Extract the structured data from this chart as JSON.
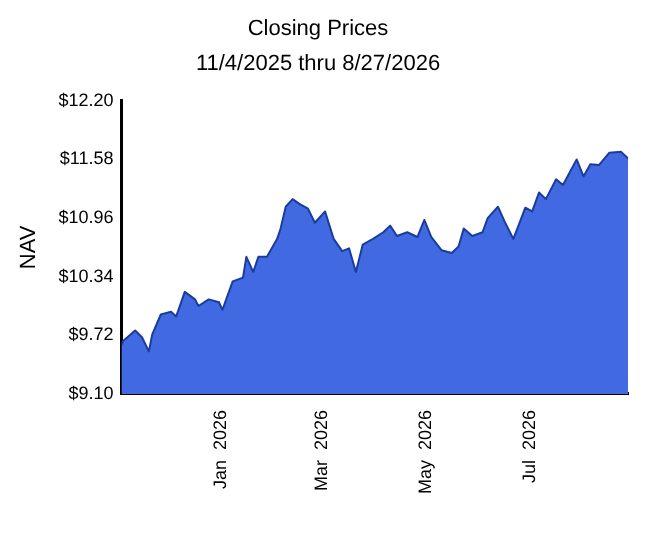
{
  "chart_data": {
    "type": "area",
    "title": "Closing Prices",
    "subtitle": "11/4/2025 thru 8/27/2026",
    "ylabel": "NAV",
    "x": [
      "2025-11-04",
      "2025-11-05",
      "2025-11-12",
      "2025-11-16",
      "2025-11-20",
      "2025-11-22",
      "2025-11-27",
      "2025-12-03",
      "2025-12-06",
      "2025-12-11",
      "2025-12-17",
      "2025-12-19",
      "2025-12-25",
      "2025-12-31",
      "2026-01-02",
      "2026-01-08",
      "2026-01-14",
      "2026-01-16",
      "2026-01-20",
      "2026-01-23",
      "2026-01-28",
      "2026-02-03",
      "2026-02-05",
      "2026-02-08",
      "2026-02-12",
      "2026-02-16",
      "2026-02-21",
      "2026-02-25",
      "2026-03-03",
      "2026-03-08",
      "2026-03-13",
      "2026-03-17",
      "2026-03-21",
      "2026-03-25",
      "2026-03-31",
      "2026-04-06",
      "2026-04-10",
      "2026-04-14",
      "2026-04-20",
      "2026-04-26",
      "2026-04-30",
      "2026-05-04",
      "2026-05-10",
      "2026-05-16",
      "2026-05-20",
      "2026-05-23",
      "2026-05-28",
      "2026-06-03",
      "2026-06-06",
      "2026-06-12",
      "2026-06-16",
      "2026-06-21",
      "2026-06-24",
      "2026-06-28",
      "2026-07-02",
      "2026-07-06",
      "2026-07-10",
      "2026-07-16",
      "2026-07-20",
      "2026-07-28",
      "2026-08-01",
      "2026-08-05",
      "2026-08-10",
      "2026-08-16",
      "2026-08-23",
      "2026-08-27"
    ],
    "series": [
      {
        "color": "#4169e1",
        "values": [
          9.62,
          9.66,
          9.77,
          9.7,
          9.55,
          9.73,
          9.94,
          9.97,
          9.92,
          10.18,
          10.1,
          10.03,
          10.1,
          10.07,
          9.99,
          10.29,
          10.33,
          10.55,
          10.39,
          10.55,
          10.55,
          10.74,
          10.85,
          11.08,
          11.16,
          11.11,
          11.06,
          10.91,
          11.03,
          10.74,
          10.61,
          10.64,
          10.39,
          10.68,
          10.74,
          10.81,
          10.88,
          10.77,
          10.81,
          10.76,
          10.94,
          10.76,
          10.62,
          10.59,
          10.66,
          10.85,
          10.77,
          10.81,
          10.96,
          11.08,
          10.92,
          10.74,
          10.88,
          11.07,
          11.03,
          11.23,
          11.16,
          11.37,
          11.31,
          11.58,
          11.4,
          11.53,
          11.52,
          11.65,
          11.66,
          11.59
        ]
      }
    ],
    "xlim": [
      "2025-11-04",
      "2026-08-27"
    ],
    "xticks": [
      {
        "value": "2026-01-01",
        "label": "Jan  2026"
      },
      {
        "value": "2026-03-01",
        "label": "Mar  2026"
      },
      {
        "value": "2026-05-01",
        "label": "May  2026"
      },
      {
        "value": "2026-07-01",
        "label": "Jul  2026"
      }
    ],
    "ylim": [
      9.1,
      12.2
    ],
    "yticks": [
      {
        "value": 9.1,
        "label": "$9.10"
      },
      {
        "value": 9.72,
        "label": "$9.72"
      },
      {
        "value": 10.34,
        "label": "$10.34"
      },
      {
        "value": 10.96,
        "label": "$10.96"
      },
      {
        "value": 11.58,
        "label": "$11.58"
      },
      {
        "value": 12.2,
        "label": "$12.20"
      }
    ],
    "grid": false,
    "legend": false,
    "marker": "none",
    "line_style": "solid"
  }
}
